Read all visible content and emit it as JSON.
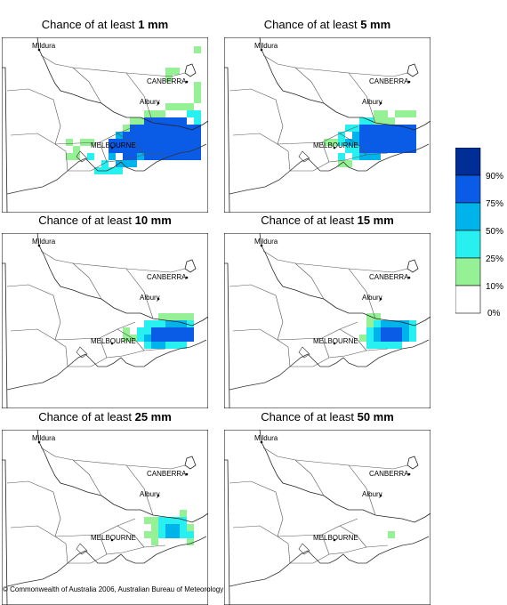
{
  "title_prefix": "Chance of at least",
  "panels": [
    {
      "threshold": "1 mm"
    },
    {
      "threshold": "5 mm"
    },
    {
      "threshold": "10 mm"
    },
    {
      "threshold": "15 mm"
    },
    {
      "threshold": "25 mm"
    },
    {
      "threshold": "50 mm"
    }
  ],
  "places": [
    "Mildura",
    "CANBERRA",
    "Albury",
    "MELBOURNE"
  ],
  "legend": {
    "labels": [
      "90%",
      "75%",
      "50%",
      "25%",
      "10%",
      "0%"
    ],
    "colors": [
      "#002d96",
      "#0a5be6",
      "#00b4eb",
      "#28f0f0",
      "#96f096",
      "#ffffff"
    ]
  },
  "footer": "© Commonwealth of Australia 2006, Australian Bureau of Meteorology"
}
